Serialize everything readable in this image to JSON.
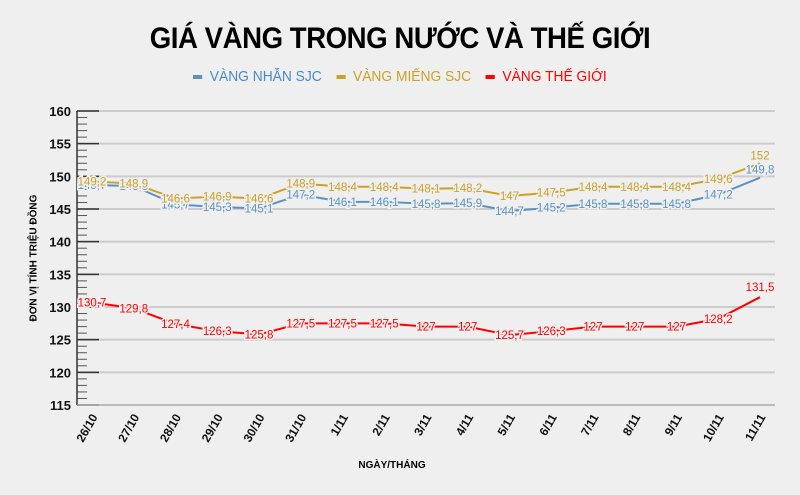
{
  "title": "GIÁ VÀNG TRONG NƯỚC VÀ THẾ GIỚI",
  "legend": [
    {
      "label": "VÀNG NHẪN SJC",
      "color": "#5b93c0"
    },
    {
      "label": "VÀNG MIẾNG SJC",
      "color": "#c9a227"
    },
    {
      "label": "VÀNG THẾ GIỚI",
      "color": "#ff0000"
    }
  ],
  "axes": {
    "ylabel": "ĐƠN VỊ TÍNH TRIỆU ĐỒNG",
    "xlabel": "NGÀY/THÁNG"
  },
  "chart_data": {
    "type": "line",
    "title": "GIÁ VÀNG TRONG NƯỚC VÀ THẾ GIỚI",
    "xlabel": "NGÀY/THÁNG",
    "ylabel": "ĐƠN VỊ TÍNH TRIỆU ĐỒNG",
    "ylim": [
      115,
      160
    ],
    "yticks": [
      115,
      120,
      125,
      130,
      135,
      140,
      145,
      150,
      155,
      160
    ],
    "grid": true,
    "legend_position": "top",
    "categories": [
      "26/10",
      "27/10",
      "28/10",
      "29/10",
      "30/10",
      "31/10",
      "1/11",
      "2/11",
      "3/11",
      "4/11",
      "5/11",
      "6/11",
      "7/11",
      "8/11",
      "9/11",
      "10/11",
      "11/11"
    ],
    "series": [
      {
        "name": "VÀNG NHẪN SJC",
        "color": "#5b93c0",
        "values": [
          148.7,
          148.5,
          145.7,
          145.3,
          145.1,
          147.2,
          146.1,
          146.1,
          145.8,
          145.9,
          144.7,
          145.2,
          145.8,
          145.8,
          145.8,
          147.2,
          149.8
        ],
        "labels": [
          "148,7",
          "148,5",
          "145,7",
          "145,3",
          "145,1",
          "147,2",
          "146,1",
          "146,1",
          "145,8",
          "145,9",
          "144,7",
          "145,2",
          "145,8",
          "145,8",
          "145,8",
          "147,2",
          "149,8"
        ]
      },
      {
        "name": "VÀNG MIẾNG SJC",
        "color": "#c9a227",
        "values": [
          149.2,
          148.9,
          146.6,
          146.9,
          146.6,
          148.9,
          148.4,
          148.4,
          148.1,
          148.2,
          147,
          147.5,
          148.4,
          148.4,
          148.4,
          149.6,
          152
        ],
        "labels": [
          "149,2",
          "148,9",
          "146,6",
          "146,9",
          "146,6",
          "148,9",
          "148,4",
          "148,4",
          "148,1",
          "148,2",
          "147",
          "147,5",
          "148,4",
          "148,4",
          "148,4",
          "149,6",
          "152"
        ]
      },
      {
        "name": "VÀNG THẾ GIỚI",
        "color": "#ff0000",
        "values": [
          130.7,
          129.8,
          127.4,
          126.3,
          125.8,
          127.5,
          127.5,
          127.5,
          127,
          127,
          125.7,
          126.3,
          127,
          127,
          127,
          128.2,
          131.5
        ],
        "labels": [
          "130,7",
          "129,8",
          "127,4",
          "126,3",
          "125,8",
          "127,5",
          "127,5",
          "127,5",
          "127",
          "127",
          "125,7",
          "126,3",
          "127",
          "127",
          "127",
          "128,2",
          "131,5"
        ]
      }
    ]
  }
}
